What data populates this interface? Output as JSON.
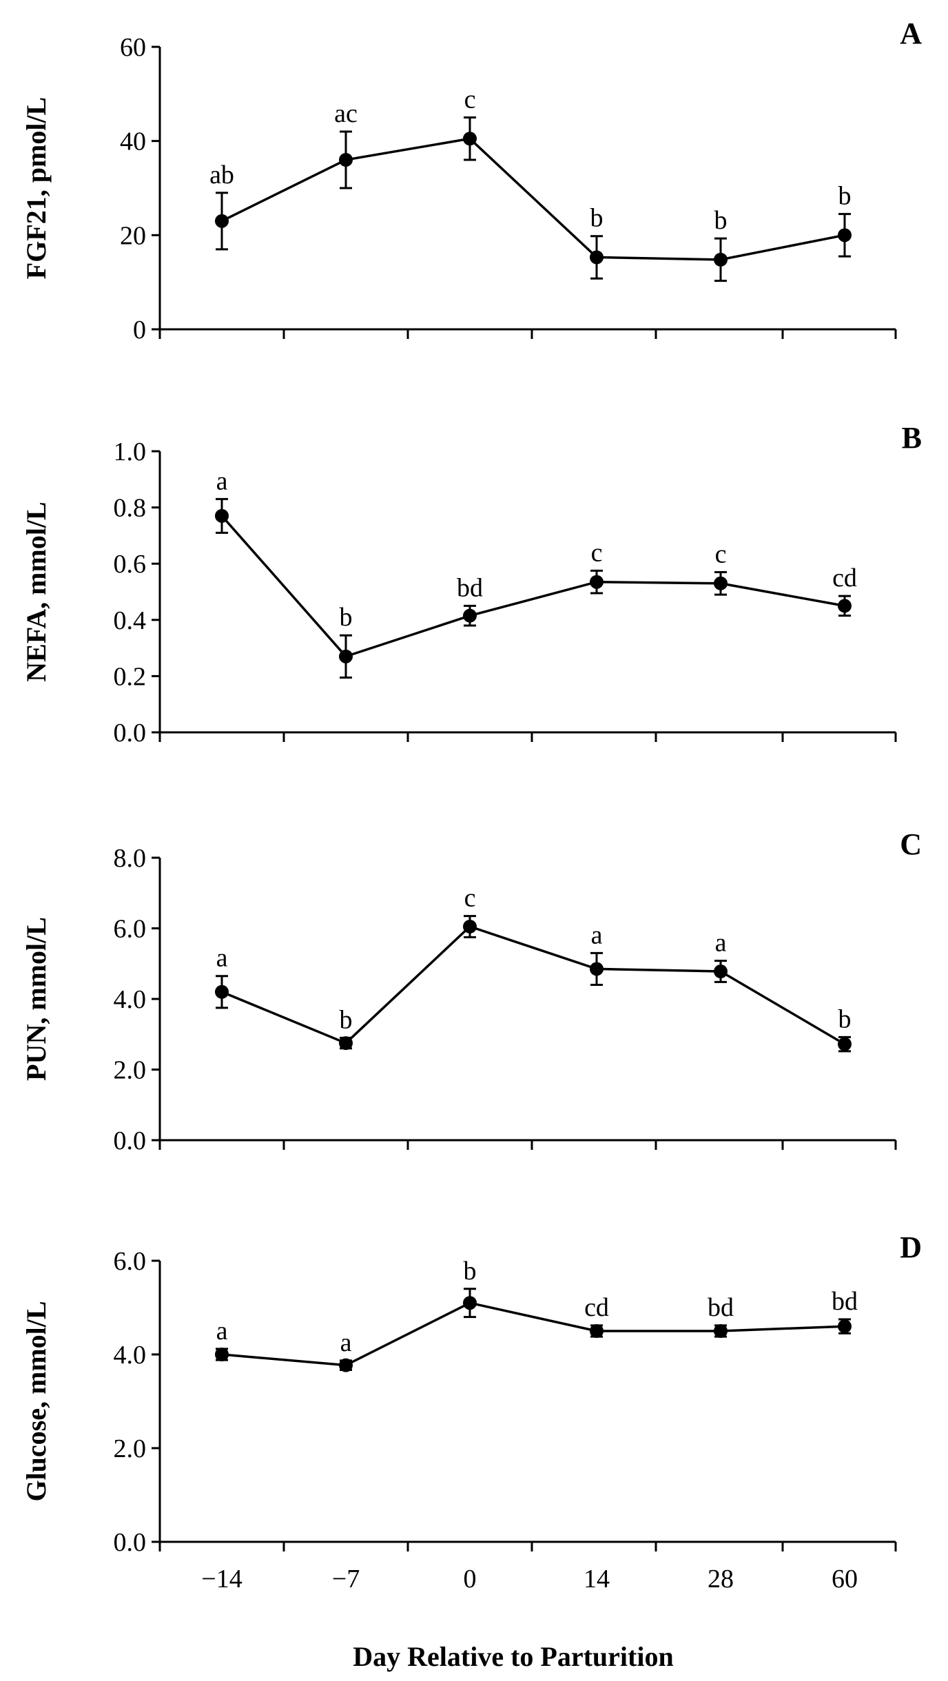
{
  "chart_data": [
    {
      "type": "line",
      "panel": "A",
      "ylabel": "FGF21, pmol/L",
      "ylim": [
        0,
        60
      ],
      "yticks": [
        "0",
        "20",
        "40",
        "60"
      ],
      "categories": [
        "−14",
        "−7",
        "0",
        "14",
        "28",
        "60"
      ],
      "values": [
        23,
        36,
        40.5,
        15.3,
        14.8,
        20
      ],
      "errors": [
        6,
        6,
        4.5,
        4.5,
        4.5,
        4.5
      ],
      "labels": [
        "ab",
        "ac",
        "c",
        "b",
        "b",
        "b"
      ]
    },
    {
      "type": "line",
      "panel": "B",
      "ylabel": "NEFA, mmol/L",
      "ylim": [
        0,
        1.0
      ],
      "yticks": [
        "0.0",
        "0.2",
        "0.4",
        "0.6",
        "0.8",
        "1.0"
      ],
      "categories": [
        "−14",
        "−7",
        "0",
        "14",
        "28",
        "60"
      ],
      "values": [
        0.77,
        0.27,
        0.415,
        0.535,
        0.53,
        0.45
      ],
      "errors": [
        0.06,
        0.075,
        0.035,
        0.04,
        0.04,
        0.035
      ],
      "labels": [
        "a",
        "b",
        "bd",
        "c",
        "c",
        "cd"
      ]
    },
    {
      "type": "line",
      "panel": "C",
      "ylabel": "PUN, mmol/L",
      "ylim": [
        0,
        8.0
      ],
      "yticks": [
        "0.0",
        "2.0",
        "4.0",
        "6.0",
        "8.0"
      ],
      "categories": [
        "−14",
        "−7",
        "0",
        "14",
        "28",
        "60"
      ],
      "values": [
        4.2,
        2.75,
        6.05,
        4.85,
        4.78,
        2.72
      ],
      "errors": [
        0.45,
        0.15,
        0.3,
        0.45,
        0.3,
        0.2
      ],
      "labels": [
        "a",
        "b",
        "c",
        "a",
        "a",
        "b"
      ]
    },
    {
      "type": "line",
      "panel": "D",
      "ylabel": "Glucose, mmol/L",
      "ylim": [
        0,
        6.0
      ],
      "yticks": [
        "0.0",
        "2.0",
        "4.0",
        "6.0"
      ],
      "categories": [
        "−14",
        "−7",
        "0",
        "14",
        "28",
        "60"
      ],
      "values": [
        4.0,
        3.77,
        5.1,
        4.5,
        4.5,
        4.6
      ],
      "errors": [
        0.12,
        0.1,
        0.3,
        0.12,
        0.12,
        0.15
      ],
      "labels": [
        "a",
        "a",
        "b",
        "cd",
        "bd",
        "bd"
      ]
    }
  ],
  "xlabel": "Day Relative to Parturition"
}
